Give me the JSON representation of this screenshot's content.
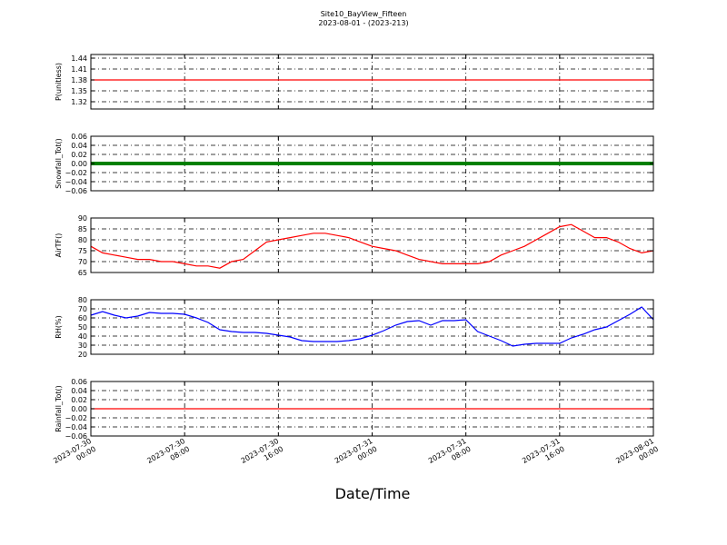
{
  "title": "Site10_BayView_Fifteen",
  "subtitle": "2023-08-01 - (2023-213)",
  "xlabel": "Date/Time",
  "colors": {
    "pressure": "#ff0000",
    "snowfall": "#008000",
    "airtemp": "#ff0000",
    "rh": "#0000ff",
    "rainfall": "#ff0000"
  },
  "chart_data": [
    {
      "type": "line",
      "ylabel": "P(unitless)",
      "ylim": [
        1.3,
        1.45
      ],
      "yticks": [
        "1.32",
        "1.35",
        "1.38",
        "1.41",
        "1.44"
      ],
      "grid": true,
      "x": [
        "2023-07-30 00:00",
        "2023-08-01 00:00"
      ],
      "series": [
        {
          "values": [
            1.38,
            1.38
          ]
        }
      ]
    },
    {
      "type": "line",
      "ylabel": "Snowfall_Tot()",
      "ylim": [
        -0.06,
        0.06
      ],
      "yticks": [
        "−0.06",
        "−0.04",
        "−0.02",
        "0.00",
        "0.02",
        "0.04",
        "0.06"
      ],
      "grid": true,
      "x": [
        "2023-07-30 00:00",
        "2023-08-01 00:00"
      ],
      "series": [
        {
          "values": [
            0.0,
            0.0
          ]
        }
      ]
    },
    {
      "type": "line",
      "ylabel": "AirTF()",
      "ylim": [
        65,
        90
      ],
      "yticks": [
        "65",
        "70",
        "75",
        "80",
        "85",
        "90"
      ],
      "grid": true,
      "x": [
        "2023-07-30 00:00",
        "2023-07-30 01:00",
        "2023-07-30 02:00",
        "2023-07-30 03:00",
        "2023-07-30 04:00",
        "2023-07-30 05:00",
        "2023-07-30 06:00",
        "2023-07-30 07:00",
        "2023-07-30 08:00",
        "2023-07-30 09:00",
        "2023-07-30 10:00",
        "2023-07-30 11:00",
        "2023-07-30 12:00",
        "2023-07-30 13:00",
        "2023-07-30 14:00",
        "2023-07-30 15:00",
        "2023-07-30 16:00",
        "2023-07-30 17:00",
        "2023-07-30 18:00",
        "2023-07-30 19:00",
        "2023-07-30 20:00",
        "2023-07-30 21:00",
        "2023-07-30 22:00",
        "2023-07-30 23:00",
        "2023-07-31 00:00",
        "2023-07-31 01:00",
        "2023-07-31 02:00",
        "2023-07-31 03:00",
        "2023-07-31 04:00",
        "2023-07-31 05:00",
        "2023-07-31 06:00",
        "2023-07-31 07:00",
        "2023-07-31 08:00",
        "2023-07-31 09:00",
        "2023-07-31 10:00",
        "2023-07-31 11:00",
        "2023-07-31 12:00",
        "2023-07-31 13:00",
        "2023-07-31 14:00",
        "2023-07-31 15:00",
        "2023-07-31 16:00",
        "2023-07-31 17:00",
        "2023-07-31 18:00",
        "2023-07-31 19:00",
        "2023-07-31 20:00",
        "2023-07-31 21:00",
        "2023-07-31 22:00",
        "2023-07-31 23:00",
        "2023-08-01 00:00"
      ],
      "series": [
        {
          "values": [
            77,
            74,
            73,
            72,
            71,
            71,
            70,
            70,
            69,
            68,
            68,
            67,
            70,
            71,
            75,
            79,
            80,
            81,
            82,
            83,
            83,
            82,
            81,
            79,
            77,
            76,
            75,
            73,
            71,
            70,
            69,
            69,
            69,
            69,
            70,
            73,
            75,
            77,
            80,
            83,
            86,
            87,
            84,
            81,
            81,
            79,
            76,
            74,
            75
          ]
        }
      ]
    },
    {
      "type": "line",
      "ylabel": "RH(%)",
      "ylim": [
        20,
        80
      ],
      "yticks": [
        "20",
        "30",
        "40",
        "50",
        "60",
        "70",
        "80"
      ],
      "grid": true,
      "x": [
        "2023-07-30 00:00",
        "2023-07-30 01:00",
        "2023-07-30 02:00",
        "2023-07-30 03:00",
        "2023-07-30 04:00",
        "2023-07-30 05:00",
        "2023-07-30 06:00",
        "2023-07-30 07:00",
        "2023-07-30 08:00",
        "2023-07-30 09:00",
        "2023-07-30 10:00",
        "2023-07-30 11:00",
        "2023-07-30 12:00",
        "2023-07-30 13:00",
        "2023-07-30 14:00",
        "2023-07-30 15:00",
        "2023-07-30 16:00",
        "2023-07-30 17:00",
        "2023-07-30 18:00",
        "2023-07-30 19:00",
        "2023-07-30 20:00",
        "2023-07-30 21:00",
        "2023-07-30 22:00",
        "2023-07-30 23:00",
        "2023-07-31 00:00",
        "2023-07-31 01:00",
        "2023-07-31 02:00",
        "2023-07-31 03:00",
        "2023-07-31 04:00",
        "2023-07-31 05:00",
        "2023-07-31 06:00",
        "2023-07-31 07:00",
        "2023-07-31 08:00",
        "2023-07-31 09:00",
        "2023-07-31 10:00",
        "2023-07-31 11:00",
        "2023-07-31 12:00",
        "2023-07-31 13:00",
        "2023-07-31 14:00",
        "2023-07-31 15:00",
        "2023-07-31 16:00",
        "2023-07-31 17:00",
        "2023-07-31 18:00",
        "2023-07-31 19:00",
        "2023-07-31 20:00",
        "2023-07-31 21:00",
        "2023-07-31 22:00",
        "2023-07-31 23:00",
        "2023-08-01 00:00"
      ],
      "series": [
        {
          "values": [
            63,
            67,
            63,
            60,
            62,
            66,
            65,
            65,
            64,
            60,
            55,
            47,
            45,
            44,
            44,
            43,
            41,
            39,
            35,
            34,
            34,
            34,
            35,
            37,
            41,
            46,
            52,
            56,
            57,
            52,
            57,
            57,
            58,
            45,
            40,
            35,
            29,
            31,
            32,
            32,
            32,
            38,
            42,
            47,
            50,
            57,
            64,
            72,
            58
          ]
        }
      ]
    },
    {
      "type": "line",
      "ylabel": "Rainfall_Tot()",
      "ylim": [
        -0.06,
        0.06
      ],
      "yticks": [
        "−0.06",
        "−0.04",
        "−0.02",
        "0.00",
        "0.02",
        "0.04",
        "0.06"
      ],
      "grid": true,
      "x": [
        "2023-07-30 00:00",
        "2023-08-01 00:00"
      ],
      "series": [
        {
          "values": [
            0.0,
            0.0
          ]
        }
      ]
    }
  ],
  "xticks": [
    [
      "2023-07-30",
      "00:00"
    ],
    [
      "2023-07-30",
      "08:00"
    ],
    [
      "2023-07-30",
      "16:00"
    ],
    [
      "2023-07-31",
      "00:00"
    ],
    [
      "2023-07-31",
      "08:00"
    ],
    [
      "2023-07-31",
      "16:00"
    ],
    [
      "2023-08-01",
      "00:00"
    ]
  ]
}
